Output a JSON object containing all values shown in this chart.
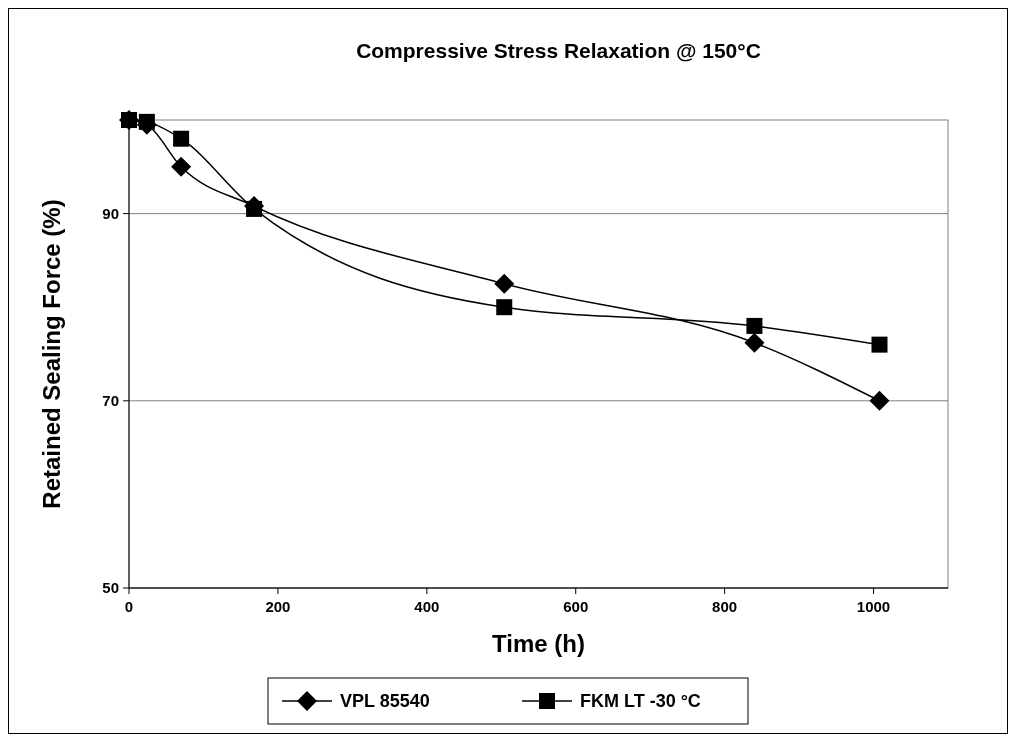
{
  "chart_data": {
    "type": "line",
    "title": "Compressive Stress Relaxation @ 150°C",
    "xlabel": "Time (h)",
    "ylabel": "Retained Sealing Force (%)",
    "xlim": [
      0,
      1100
    ],
    "xticks": [
      0,
      200,
      400,
      600,
      800,
      1000
    ],
    "ylim": [
      50,
      100
    ],
    "yticks": [
      50,
      70,
      90
    ],
    "grid": "y",
    "legend": "bottom",
    "series": [
      {
        "name": "VPL 85540",
        "color": "#000000",
        "marker": "diamond",
        "x": [
          0,
          24,
          70,
          168,
          504,
          840,
          1008
        ],
        "values": [
          100,
          99.5,
          95,
          90.8,
          82.5,
          76.2,
          70
        ]
      },
      {
        "name": "FKM LT -30 °C",
        "color": "#000000",
        "marker": "square",
        "x": [
          0,
          24,
          70,
          168,
          504,
          840,
          1008
        ],
        "values": [
          100,
          99.8,
          98,
          90.5,
          80,
          78,
          76
        ]
      }
    ]
  }
}
